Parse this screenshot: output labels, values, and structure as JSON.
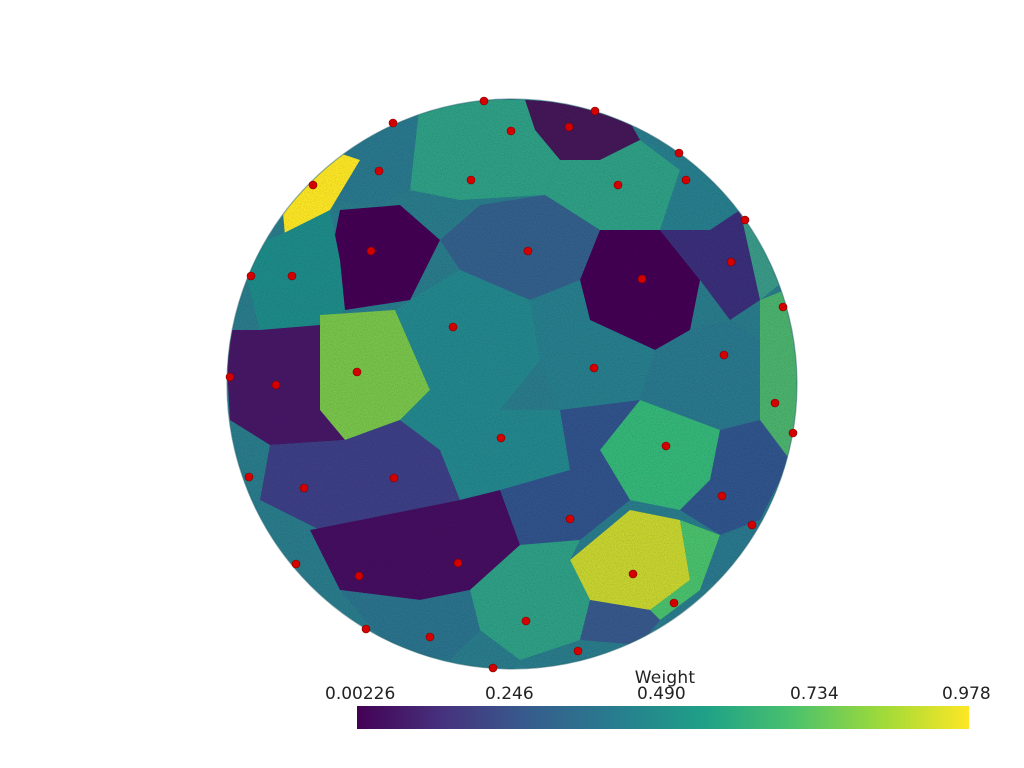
{
  "colorbar": {
    "title": "Weight",
    "ticks": [
      "0.00226",
      "0.246",
      "0.490",
      "0.734",
      "0.978"
    ],
    "range": [
      0.00226,
      0.978
    ],
    "colormap": "viridis",
    "stops": [
      "#440154",
      "#46327e",
      "#365c8d",
      "#277f8e",
      "#1fa187",
      "#4ac16d",
      "#a0da39",
      "#fde725"
    ]
  },
  "scene": {
    "background": "#ffffff",
    "sphere_point_cloud": true,
    "marker_color": "#d40000",
    "region_weights": [
      0.05,
      0.1,
      0.35,
      0.25,
      0.55,
      0.62,
      0.85,
      0.93,
      0.4,
      0.18,
      0.3,
      0.5,
      0.6,
      0.7,
      0.45,
      0.28
    ],
    "marker_count": 45
  }
}
